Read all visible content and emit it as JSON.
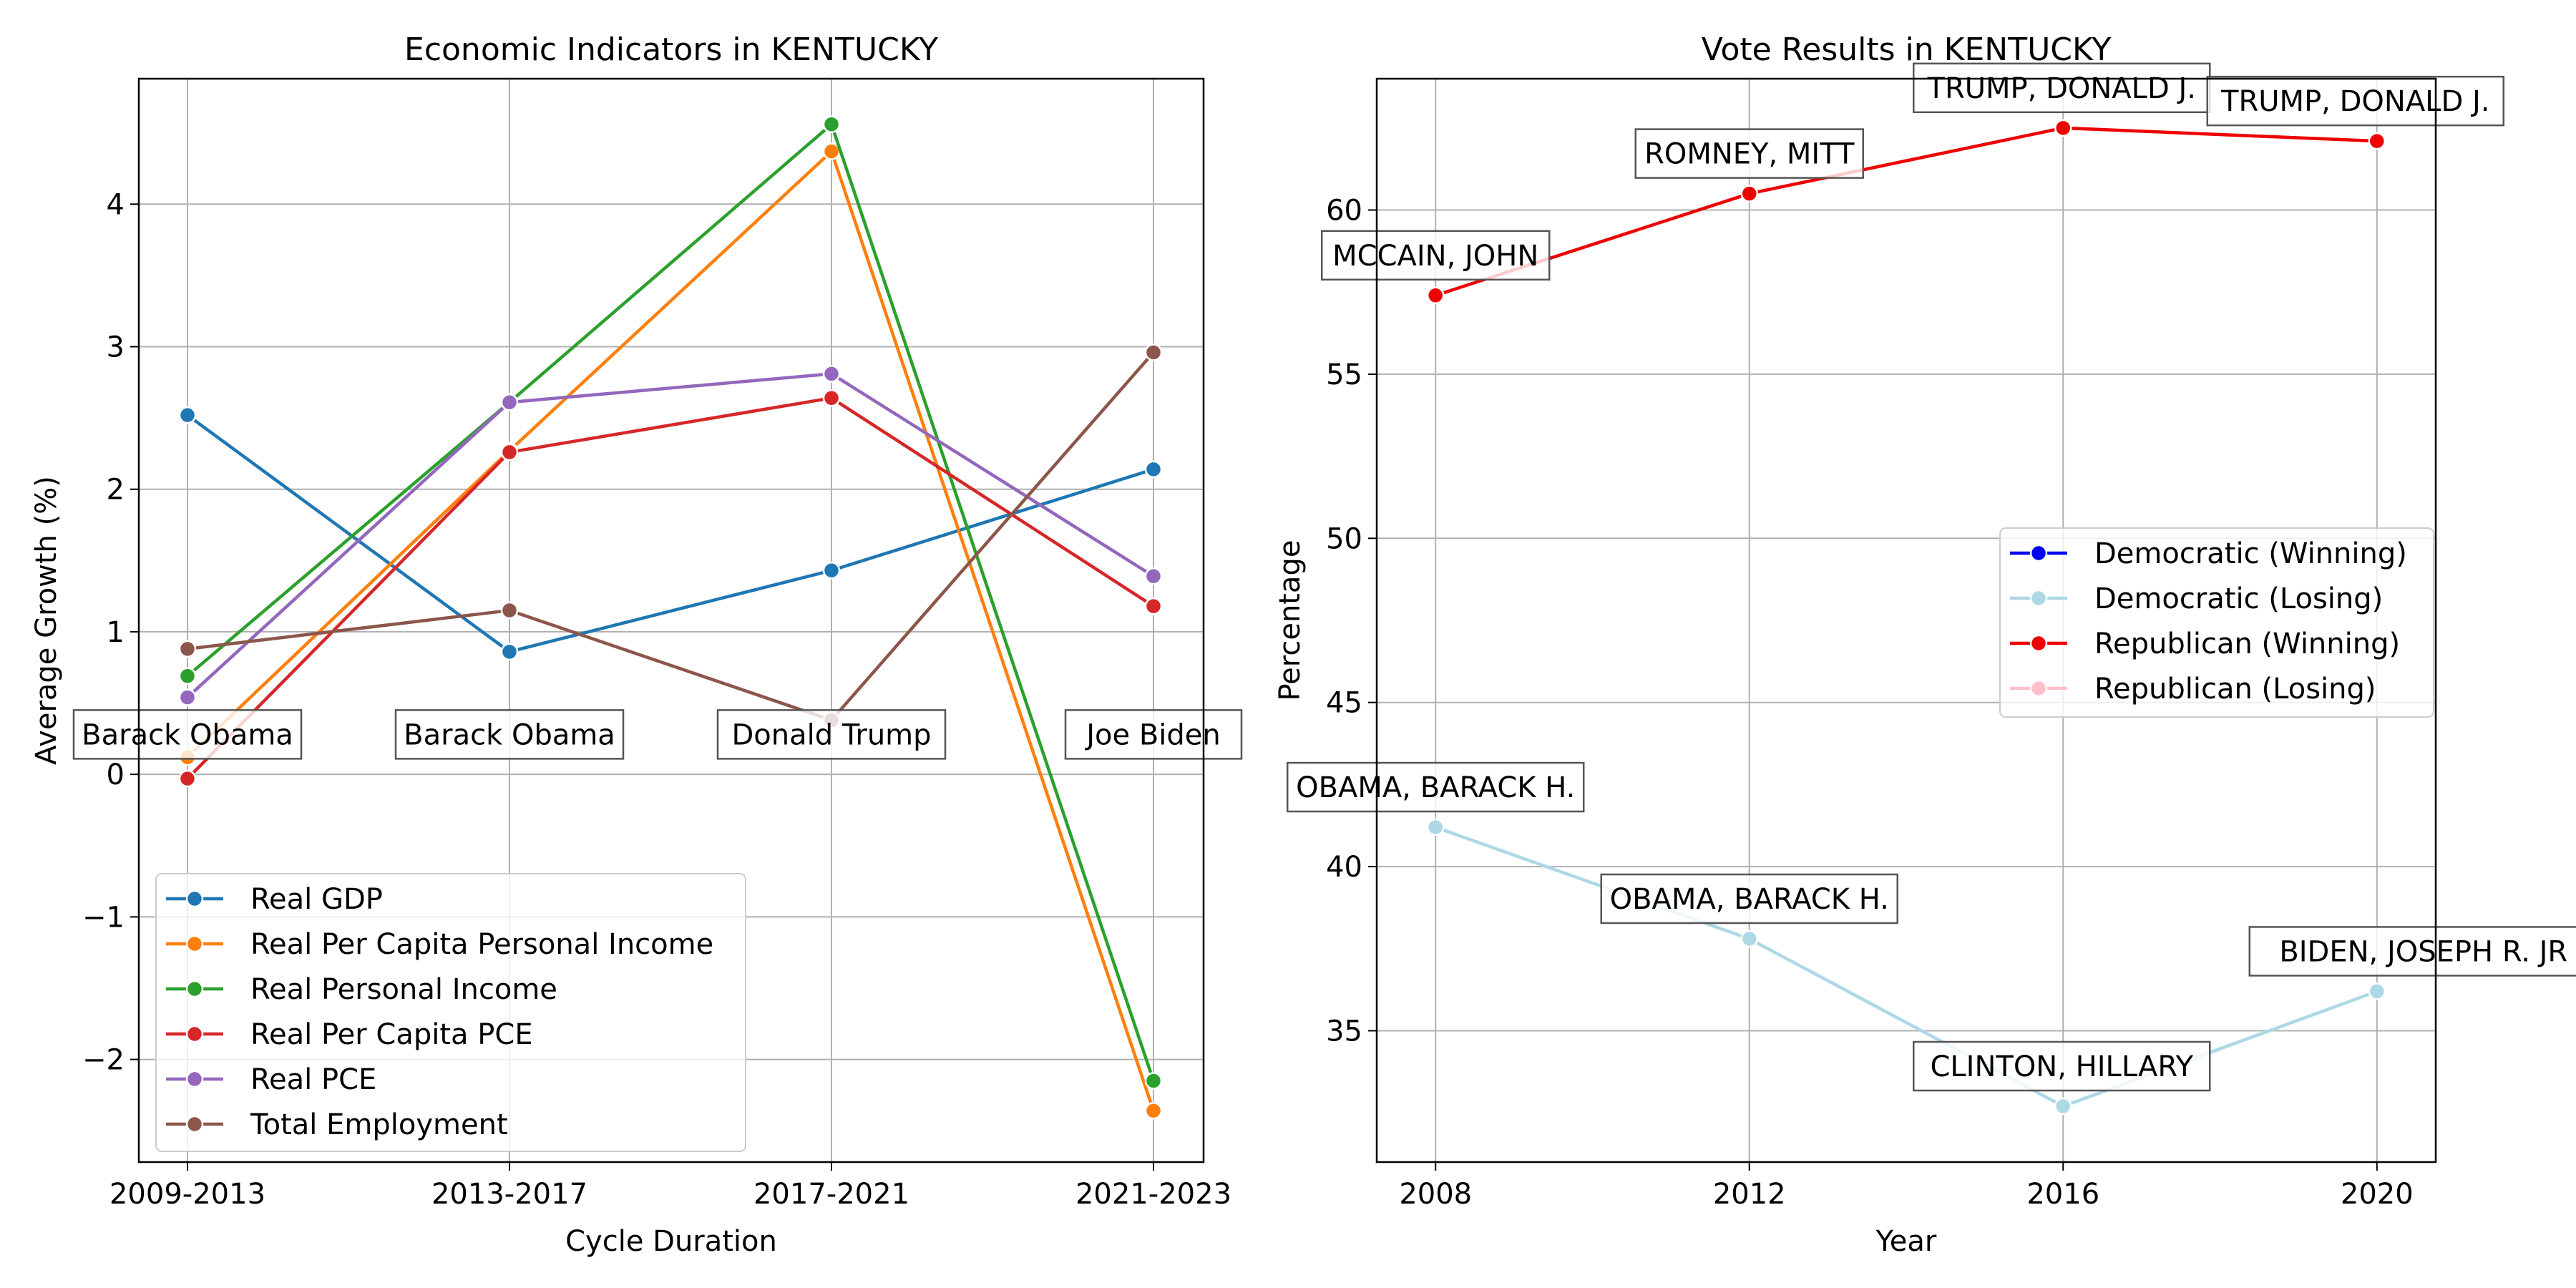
{
  "chart_data": [
    {
      "type": "line",
      "title": "Economic Indicators in KENTUCKY",
      "xlabel": "Cycle Duration",
      "ylabel": "Average Growth (%)",
      "categories": [
        "2009-2013",
        "2013-2017",
        "2017-2021",
        "2021-2023"
      ],
      "ylim": [
        -2.72,
        4.88
      ],
      "yticks": [
        -2,
        -1,
        0,
        1,
        2,
        3,
        4
      ],
      "ytick_labels": [
        "−2",
        "−1",
        "0",
        "1",
        "2",
        "3",
        "4"
      ],
      "grid": true,
      "legend_position": "lower-left",
      "series": [
        {
          "name": "Real GDP",
          "color": "#1f77b4",
          "values": [
            2.52,
            0.86,
            1.43,
            2.14
          ]
        },
        {
          "name": "Real Per Capita Personal Income",
          "color": "#ff7f0e",
          "values": [
            0.12,
            2.27,
            4.37,
            -2.36
          ]
        },
        {
          "name": "Real Personal Income",
          "color": "#2ca02c",
          "values": [
            0.69,
            2.61,
            4.56,
            -2.15
          ]
        },
        {
          "name": "Real Per Capita PCE",
          "color": "#d62728",
          "values": [
            -0.03,
            2.26,
            2.64,
            1.18
          ]
        },
        {
          "name": "Real PCE",
          "color": "#9467bd",
          "values": [
            0.54,
            2.61,
            2.81,
            1.39
          ]
        },
        {
          "name": "Total Employment",
          "color": "#8c564b",
          "values": [
            0.88,
            1.15,
            0.38,
            2.96
          ]
        }
      ],
      "annotations": [
        {
          "text": "Barack Obama",
          "category": 0,
          "y": 0.28
        },
        {
          "text": "Barack Obama",
          "category": 1,
          "y": 0.28
        },
        {
          "text": "Donald Trump",
          "category": 2,
          "y": 0.28
        },
        {
          "text": "Joe Biden",
          "category": 3,
          "y": 0.28
        }
      ]
    },
    {
      "type": "line",
      "title": "Vote Results in KENTUCKY",
      "xlabel": "Year",
      "ylabel": "Percentage",
      "x": [
        2008,
        2012,
        2016,
        2020
      ],
      "xlim": [
        2007.25,
        2020.75
      ],
      "ylim": [
        31.0,
        64.0
      ],
      "xticks": [
        2008,
        2012,
        2016,
        2020
      ],
      "yticks": [
        35,
        40,
        45,
        50,
        55,
        60
      ],
      "grid": true,
      "legend_position": "center-right",
      "legend": [
        {
          "name": "Democratic (Winning)",
          "color": "#0000ee"
        },
        {
          "name": "Democratic (Losing)",
          "color": "#add8e6"
        },
        {
          "name": "Republican (Winning)",
          "color": "#ee0000"
        },
        {
          "name": "Republican (Losing)",
          "color": "#ffc0cb"
        }
      ],
      "series": [
        {
          "name": "Republican (Winning)",
          "color": "#ee0000",
          "values": [
            57.4,
            60.5,
            62.5,
            62.1
          ]
        },
        {
          "name": "Democratic (Losing)",
          "color": "#add8e6",
          "values": [
            41.2,
            37.8,
            32.7,
            36.2
          ]
        }
      ],
      "annotations": [
        {
          "text": "MCCAIN, JOHN",
          "x": 2008,
          "y": 57.4
        },
        {
          "text": "ROMNEY, MITT",
          "x": 2012,
          "y": 60.5
        },
        {
          "text": "TRUMP, DONALD J.",
          "x": 2016,
          "y": 62.5
        },
        {
          "text": "TRUMP, DONALD J.",
          "x": 2020,
          "y": 62.1
        },
        {
          "text": "OBAMA, BARACK H.",
          "x": 2008,
          "y": 41.2
        },
        {
          "text": "OBAMA, BARACK H.",
          "x": 2012,
          "y": 37.8
        },
        {
          "text": "CLINTON, HILLARY",
          "x": 2016,
          "y": 32.7
        },
        {
          "text": "BIDEN, JOSEPH R. JR",
          "x": 2020,
          "y": 36.2
        }
      ]
    }
  ]
}
